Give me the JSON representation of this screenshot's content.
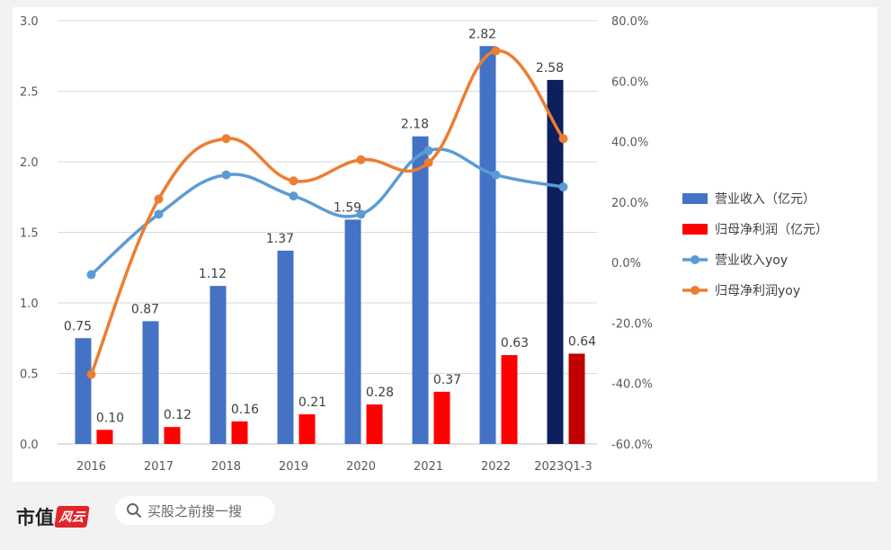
{
  "chart_data": {
    "type": "bar+line",
    "categories": [
      "2016",
      "2017",
      "2018",
      "2019",
      "2020",
      "2021",
      "2022",
      "2023Q1-3"
    ],
    "left_axis": {
      "ylim": [
        0,
        3.0
      ],
      "ticks": [
        "0.0",
        "0.5",
        "1.0",
        "1.5",
        "2.0",
        "2.5",
        "3.0"
      ],
      "tick_values": [
        0,
        0.5,
        1.0,
        1.5,
        2.0,
        2.5,
        3.0
      ]
    },
    "right_axis": {
      "ylim": [
        -60,
        80
      ],
      "ticks": [
        "-60.0%",
        "-40.0%",
        "-20.0%",
        "0.0%",
        "20.0%",
        "40.0%",
        "60.0%",
        "80.0%"
      ],
      "tick_values": [
        -60,
        -40,
        -20,
        0,
        20,
        40,
        60,
        80
      ]
    },
    "series": [
      {
        "name": "营业收入（亿元）",
        "kind": "bar",
        "axis": "left",
        "color": "#4472c4",
        "highlight_color": "#0d1f5c",
        "values": [
          0.75,
          0.87,
          1.12,
          1.37,
          1.59,
          2.18,
          2.82,
          2.58
        ],
        "labels": [
          "0.75",
          "0.87",
          "1.12",
          "1.37",
          "1.59",
          "2.18",
          "2.82",
          "2.58"
        ]
      },
      {
        "name": "归母净利润（亿元）",
        "kind": "bar",
        "axis": "left",
        "color": "#ff0000",
        "highlight_color": "#c00000",
        "values": [
          0.1,
          0.12,
          0.16,
          0.21,
          0.28,
          0.37,
          0.63,
          0.64
        ],
        "labels": [
          "0.10",
          "0.12",
          "0.16",
          "0.21",
          "0.28",
          "0.37",
          "0.63",
          "0.64"
        ]
      },
      {
        "name": "营业收入yoy",
        "kind": "line",
        "axis": "right",
        "color": "#5b9bd5",
        "values": [
          -4,
          16,
          29,
          22,
          16,
          37,
          29,
          25
        ]
      },
      {
        "name": "归母净利润yoy",
        "kind": "line",
        "axis": "right",
        "color": "#ed7d31",
        "values": [
          -37,
          21,
          41,
          27,
          34,
          33,
          70,
          41
        ]
      }
    ],
    "legend_position": "right"
  },
  "footer": {
    "brand_name": "市值",
    "brand_mark": "风云",
    "search_placeholder": "买股之前搜一搜"
  }
}
